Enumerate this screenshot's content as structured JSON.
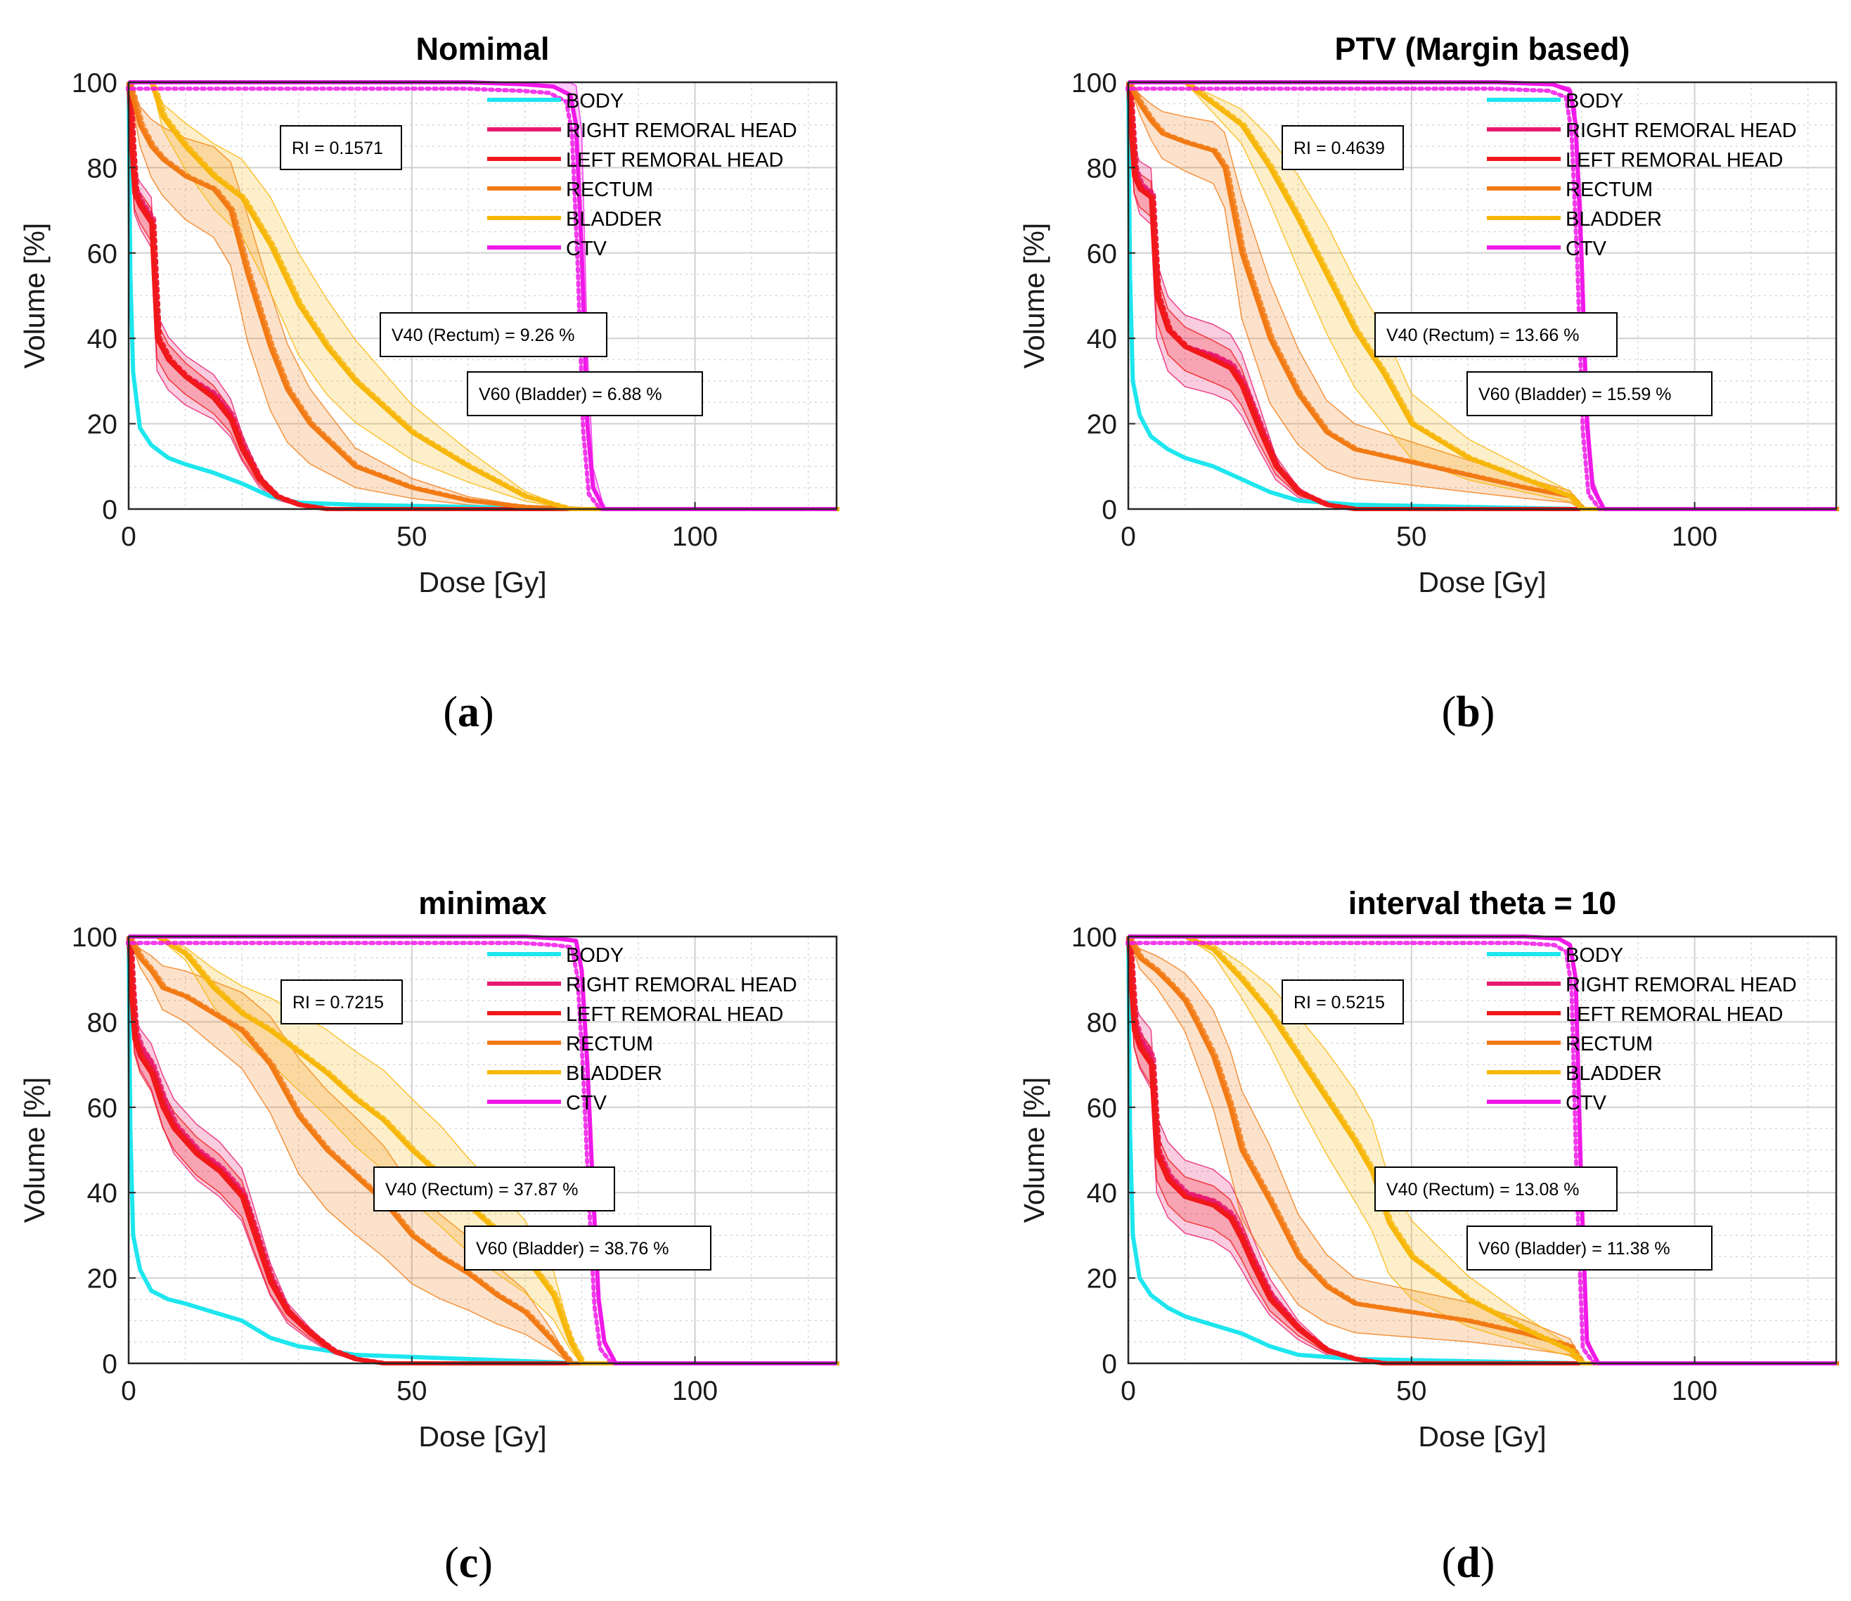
{
  "figure": {
    "colors": {
      "BODY": "#1ee6ee",
      "RIGHT REMORAL HEAD": "#e8196e",
      "LEFT REMORAL HEAD": "#f01818",
      "RECTUM": "#f27a14",
      "BLADDER": "#f7b70a",
      "CTV": "#f018e8"
    }
  },
  "chart_data": [
    {
      "type": "line",
      "panel_label": "a",
      "title": "Nomimal",
      "xlabel": "Dose [Gy]",
      "ylabel": "Volume [%]",
      "xlim": [
        0,
        125
      ],
      "ylim": [
        0,
        100
      ],
      "xticks": [
        "0",
        "50",
        "100"
      ],
      "yticks": [
        "0",
        "20",
        "40",
        "60",
        "80",
        "100"
      ],
      "grid": true,
      "legend": [
        "BODY",
        "RIGHT REMORAL HEAD",
        "LEFT REMORAL HEAD",
        "RECTUM",
        "BLADDER",
        "CTV"
      ],
      "annotations": {
        "ri": "RI = 0.1571",
        "v40": "V40 (Rectum) = 9.26 %",
        "v60": "V60 (Bladder) = 6.88 %"
      },
      "series": [
        {
          "name": "BODY",
          "x": [
            0,
            0.3,
            0.8,
            2,
            4,
            7,
            10,
            15,
            20,
            25,
            30,
            40,
            60,
            80,
            125
          ],
          "y": [
            100,
            55,
            32,
            19,
            15,
            12,
            10.5,
            8.5,
            6,
            3,
            1.5,
            1,
            0.5,
            0,
            0
          ]
        },
        {
          "name": "RIGHT REMORAL HEAD",
          "x": [
            0,
            0.5,
            1,
            2,
            4,
            5,
            7,
            10,
            15,
            18,
            20,
            23,
            26,
            30,
            35,
            125
          ],
          "y": [
            100,
            85,
            75,
            72,
            68,
            40,
            35,
            31,
            27,
            22,
            15,
            7,
            3,
            1,
            0,
            0
          ],
          "band": [
            8,
            6
          ]
        },
        {
          "name": "LEFT REMORAL HEAD",
          "x": [
            0,
            0.5,
            1,
            2,
            4,
            5,
            7,
            10,
            15,
            18,
            20,
            23,
            26,
            30,
            35,
            125
          ],
          "y": [
            100,
            85,
            74,
            71,
            67,
            40,
            35,
            31,
            26,
            21,
            14,
            7,
            3,
            1,
            0,
            0
          ],
          "band": [
            5,
            4
          ]
        },
        {
          "name": "RECTUM",
          "x": [
            0,
            2,
            4,
            6,
            10,
            15,
            18,
            21,
            25,
            28,
            32,
            40,
            50,
            60,
            70,
            80,
            125
          ],
          "y": [
            100,
            90,
            85,
            82,
            78,
            75,
            70,
            55,
            38,
            28,
            20,
            10,
            5,
            2,
            0.5,
            0,
            0
          ],
          "band": [
            16,
            14
          ]
        },
        {
          "name": "BLADDER",
          "x": [
            0,
            2,
            4,
            6,
            10,
            15,
            20,
            25,
            30,
            35,
            40,
            50,
            60,
            70,
            78,
            125
          ],
          "y": [
            100,
            100,
            100,
            92,
            85,
            78,
            73,
            62,
            48,
            38,
            30,
            18,
            10,
            3,
            0,
            0
          ],
          "band": [
            12,
            12
          ]
        },
        {
          "name": "CTV",
          "x": [
            0,
            45,
            60,
            70,
            75,
            78,
            79,
            80,
            81,
            82,
            84,
            125
          ],
          "y": [
            100,
            100,
            100,
            99.5,
            99,
            97,
            90,
            60,
            20,
            5,
            0,
            0
          ],
          "band": [
            0,
            30
          ]
        }
      ]
    },
    {
      "type": "line",
      "panel_label": "b",
      "title": "PTV (Margin based)",
      "xlabel": "Dose [Gy]",
      "ylabel": "Volume [%]",
      "xlim": [
        0,
        125
      ],
      "ylim": [
        0,
        100
      ],
      "xticks": [
        "0",
        "50",
        "100"
      ],
      "yticks": [
        "0",
        "20",
        "40",
        "60",
        "80",
        "100"
      ],
      "grid": true,
      "legend": [
        "BODY",
        "RIGHT REMORAL HEAD",
        "LEFT REMORAL HEAD",
        "RECTUM",
        "BLADDER",
        "CTV"
      ],
      "annotations": {
        "ri": "RI = 0.4639",
        "v40": "V40 (Rectum) = 13.66 %",
        "v60": "V60 (Bladder) = 15.59 %"
      },
      "series": [
        {
          "name": "BODY",
          "x": [
            0,
            0.3,
            0.8,
            2,
            4,
            7,
            10,
            15,
            20,
            25,
            30,
            40,
            60,
            80,
            125
          ],
          "y": [
            100,
            55,
            30,
            22,
            17,
            14,
            12,
            10,
            7,
            4,
            2,
            1,
            0.5,
            0,
            0
          ]
        },
        {
          "name": "RIGHT REMORAL HEAD",
          "x": [
            0,
            0.5,
            1,
            2,
            4,
            5,
            7,
            10,
            15,
            18,
            20,
            23,
            26,
            30,
            35,
            40,
            125
          ],
          "y": [
            100,
            90,
            80,
            76,
            74,
            50,
            42,
            38,
            36,
            34,
            30,
            20,
            10,
            4,
            1,
            0,
            0
          ],
          "band": [
            10,
            8
          ]
        },
        {
          "name": "LEFT REMORAL HEAD",
          "x": [
            0,
            0.5,
            1,
            2,
            4,
            5,
            7,
            10,
            15,
            18,
            20,
            23,
            26,
            30,
            35,
            40,
            125
          ],
          "y": [
            100,
            88,
            78,
            75,
            73,
            50,
            42,
            38,
            35,
            33,
            29,
            19,
            10,
            4,
            1,
            0,
            0
          ],
          "band": [
            6,
            5
          ]
        },
        {
          "name": "RECTUM",
          "x": [
            0,
            2,
            4,
            6,
            10,
            15,
            17,
            20,
            25,
            30,
            35,
            40,
            50,
            60,
            70,
            78,
            80,
            125
          ],
          "y": [
            100,
            95,
            91,
            88,
            86,
            84,
            80,
            60,
            40,
            27,
            18,
            14,
            11,
            8,
            5,
            3,
            0,
            0
          ],
          "band": [
            16,
            14
          ]
        },
        {
          "name": "BLADDER",
          "x": [
            0,
            2,
            5,
            10,
            15,
            20,
            25,
            30,
            35,
            40,
            45,
            50,
            60,
            70,
            78,
            80,
            125
          ],
          "y": [
            100,
            100,
            100,
            100,
            95,
            90,
            80,
            68,
            55,
            42,
            32,
            20,
            12,
            7,
            3,
            0,
            0
          ],
          "band": [
            14,
            12
          ]
        },
        {
          "name": "CTV",
          "x": [
            0,
            50,
            65,
            75,
            78,
            79,
            80,
            81,
            82,
            84,
            125
          ],
          "y": [
            100,
            100,
            100,
            99.5,
            98,
            90,
            60,
            20,
            5,
            0,
            0
          ],
          "band": [
            0,
            12
          ]
        }
      ]
    },
    {
      "type": "line",
      "panel_label": "c",
      "title": "minimax",
      "xlabel": "Dose [Gy]",
      "ylabel": "Volume [%]",
      "xlim": [
        0,
        125
      ],
      "ylim": [
        0,
        100
      ],
      "xticks": [
        "0",
        "50",
        "100"
      ],
      "yticks": [
        "0",
        "20",
        "40",
        "60",
        "80",
        "100"
      ],
      "grid": true,
      "legend": [
        "BODY",
        "RIGHT REMORAL HEAD",
        "LEFT REMORAL HEAD",
        "RECTUM",
        "BLADDER",
        "CTV"
      ],
      "annotations": {
        "ri": "RI = 0.7215",
        "v40": "V40 (Rectum) = 37.87 %",
        "v60": "V60 (Bladder) = 38.76 %"
      },
      "series": [
        {
          "name": "BODY",
          "x": [
            0,
            0.3,
            0.8,
            2,
            4,
            7,
            10,
            15,
            20,
            25,
            30,
            40,
            60,
            80,
            125
          ],
          "y": [
            100,
            55,
            30,
            22,
            17,
            15,
            14,
            12,
            10,
            6,
            4,
            2,
            1,
            0,
            0
          ]
        },
        {
          "name": "RIGHT REMORAL HEAD",
          "x": [
            0,
            0.5,
            1,
            2,
            4,
            6,
            8,
            12,
            16,
            20,
            22,
            25,
            28,
            32,
            36,
            40,
            45,
            125
          ],
          "y": [
            100,
            88,
            78,
            74,
            70,
            62,
            56,
            50,
            46,
            40,
            32,
            20,
            12,
            7,
            3,
            1,
            0,
            0
          ],
          "band": [
            7,
            6
          ]
        },
        {
          "name": "LEFT REMORAL HEAD",
          "x": [
            0,
            0.5,
            1,
            2,
            4,
            6,
            8,
            12,
            16,
            20,
            22,
            25,
            28,
            32,
            36,
            40,
            45,
            125
          ],
          "y": [
            100,
            86,
            76,
            72,
            68,
            60,
            55,
            49,
            45,
            39,
            31,
            19,
            12,
            7,
            3,
            1,
            0,
            0
          ],
          "band": [
            5,
            4
          ]
        },
        {
          "name": "RECTUM",
          "x": [
            0,
            2,
            4,
            6,
            10,
            15,
            20,
            25,
            30,
            35,
            40,
            45,
            50,
            55,
            60,
            65,
            70,
            75,
            78,
            125
          ],
          "y": [
            100,
            95,
            92,
            88,
            86,
            82,
            78,
            70,
            58,
            50,
            44,
            38,
            30,
            25,
            21,
            16,
            12,
            5,
            0,
            0
          ],
          "band": [
            14,
            14
          ]
        },
        {
          "name": "BLADDER",
          "x": [
            0,
            2,
            5,
            10,
            15,
            20,
            25,
            30,
            35,
            40,
            45,
            50,
            55,
            60,
            65,
            70,
            75,
            78,
            80,
            125
          ],
          "y": [
            100,
            100,
            100,
            96,
            88,
            82,
            78,
            73,
            68,
            62,
            57,
            50,
            44,
            37,
            31,
            25,
            16,
            5,
            0,
            0
          ],
          "band": [
            12,
            12
          ]
        },
        {
          "name": "CTV",
          "x": [
            0,
            50,
            70,
            76,
            79,
            80,
            81,
            82,
            83,
            84,
            86,
            125
          ],
          "y": [
            100,
            100,
            100,
            99.5,
            99,
            92,
            70,
            40,
            15,
            5,
            0,
            0
          ],
          "band": [
            0,
            6
          ]
        }
      ]
    },
    {
      "type": "line",
      "panel_label": "d",
      "title": "interval theta = 10",
      "xlabel": "Dose [Gy]",
      "ylabel": "Volume [%]",
      "xlim": [
        0,
        125
      ],
      "ylim": [
        0,
        100
      ],
      "xticks": [
        "0",
        "50",
        "100"
      ],
      "yticks": [
        "0",
        "20",
        "40",
        "60",
        "80",
        "100"
      ],
      "grid": true,
      "legend": [
        "BODY",
        "RIGHT REMORAL HEAD",
        "LEFT REMORAL HEAD",
        "RECTUM",
        "BLADDER",
        "CTV"
      ],
      "annotations": {
        "ri": "RI = 0.5215",
        "v40": "V40 (Rectum) = 13.08 %",
        "v60": "V60 (Bladder) = 11.38 %"
      },
      "series": [
        {
          "name": "BODY",
          "x": [
            0,
            0.3,
            0.8,
            2,
            4,
            7,
            10,
            15,
            20,
            25,
            30,
            40,
            60,
            80,
            125
          ],
          "y": [
            100,
            55,
            30,
            20,
            16,
            13,
            11,
            9,
            7,
            4,
            2,
            1,
            0.5,
            0,
            0
          ]
        },
        {
          "name": "RIGHT REMORAL HEAD",
          "x": [
            0,
            0.5,
            1,
            2,
            4,
            5,
            7,
            10,
            15,
            18,
            20,
            22,
            25,
            30,
            35,
            40,
            45,
            125
          ],
          "y": [
            100,
            90,
            80,
            76,
            72,
            50,
            44,
            40,
            38,
            35,
            30,
            24,
            16,
            8,
            3,
            1,
            0,
            0
          ],
          "band": [
            10,
            8
          ]
        },
        {
          "name": "LEFT REMORAL HEAD",
          "x": [
            0,
            0.5,
            1,
            2,
            4,
            5,
            7,
            10,
            15,
            18,
            20,
            22,
            25,
            30,
            35,
            40,
            45,
            125
          ],
          "y": [
            100,
            88,
            78,
            74,
            70,
            49,
            43,
            39,
            37,
            34,
            29,
            23,
            15,
            8,
            3,
            1,
            0,
            0
          ],
          "band": [
            6,
            5
          ]
        },
        {
          "name": "RECTUM",
          "x": [
            0,
            2,
            5,
            8,
            10,
            12,
            15,
            18,
            20,
            25,
            30,
            35,
            40,
            45,
            50,
            60,
            70,
            78,
            80,
            125
          ],
          "y": [
            100,
            95,
            92,
            88,
            85,
            80,
            72,
            60,
            50,
            38,
            25,
            18,
            14,
            13,
            12,
            10,
            7,
            4,
            0,
            0
          ],
          "band": [
            16,
            14
          ]
        },
        {
          "name": "BLADDER",
          "x": [
            0,
            2,
            5,
            10,
            15,
            20,
            25,
            30,
            35,
            40,
            43,
            46,
            50,
            60,
            70,
            78,
            80,
            125
          ],
          "y": [
            100,
            100,
            100,
            100,
            97,
            90,
            82,
            72,
            62,
            52,
            45,
            33,
            25,
            15,
            8,
            3,
            0,
            0
          ],
          "band": [
            14,
            12
          ]
        },
        {
          "name": "CTV",
          "x": [
            0,
            55,
            70,
            76,
            78,
            79,
            80,
            81,
            83,
            125
          ],
          "y": [
            100,
            100,
            100,
            99.5,
            98,
            90,
            40,
            5,
            0,
            0
          ],
          "band": [
            0,
            8
          ]
        }
      ]
    }
  ]
}
